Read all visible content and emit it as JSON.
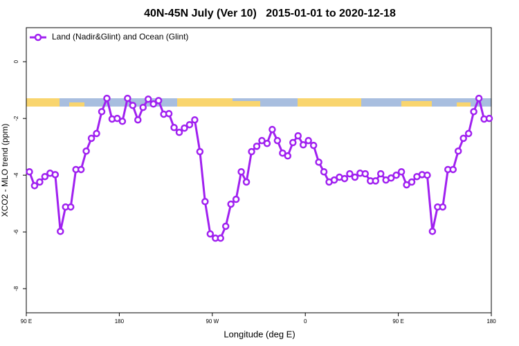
{
  "chart_data": {
    "type": "line",
    "title": "40N-45N July (Ver 10)   2015-01-01 to 2020-12-18",
    "xlabel": "Longitude (deg E)",
    "ylabel": "XCO2 - MLO trend (ppm)",
    "x": [
      93,
      98,
      103,
      108,
      113,
      118,
      123,
      128,
      133,
      138,
      143,
      148,
      153,
      158,
      163,
      168,
      173,
      178,
      183,
      188,
      193,
      198,
      203,
      208,
      213,
      218,
      223,
      228,
      233,
      238,
      243,
      248,
      253,
      258,
      263,
      268,
      273,
      278,
      283,
      288,
      293,
      298,
      303,
      308,
      313,
      318,
      323,
      328,
      333,
      338,
      343,
      348,
      353,
      358,
      363,
      368,
      373,
      378,
      383,
      388,
      393,
      398,
      403,
      408,
      413,
      418,
      423,
      428,
      433,
      438,
      443,
      448,
      453,
      458,
      463,
      468,
      473,
      478,
      483,
      488,
      493,
      498,
      503,
      508,
      513,
      518,
      523,
      528,
      533,
      538
    ],
    "series": [
      {
        "name": "Land (Nadir&Glint) and Ocean (Glint)",
        "color": "#a020f0",
        "values": [
          -3.88,
          -4.37,
          -4.24,
          -4.05,
          -3.93,
          -3.98,
          -5.98,
          -5.12,
          -5.12,
          -3.8,
          -3.8,
          -3.15,
          -2.7,
          -2.53,
          -1.76,
          -1.29,
          -2.02,
          -2.0,
          -2.1,
          -1.29,
          -1.54,
          -2.05,
          -1.61,
          -1.32,
          -1.49,
          -1.37,
          -1.85,
          -1.83,
          -2.32,
          -2.49,
          -2.34,
          -2.22,
          -2.05,
          -3.17,
          -4.93,
          -6.07,
          -6.22,
          -6.22,
          -5.8,
          -5.02,
          -4.85,
          -3.88,
          -4.24,
          -3.17,
          -2.98,
          -2.78,
          -2.88,
          -2.39,
          -2.78,
          -3.22,
          -3.32,
          -2.85,
          -2.61,
          -2.93,
          -2.78,
          -2.95,
          -3.54,
          -3.88,
          -4.24,
          -4.17,
          -4.07,
          -4.12,
          -3.95,
          -4.07,
          -3.93,
          -3.95,
          -4.2,
          -4.2,
          -3.95,
          -4.17,
          -4.1,
          -4.0,
          -3.88,
          -4.34,
          -4.24,
          -4.05,
          -3.98,
          -4.0,
          -5.98,
          -5.12,
          -5.12,
          -3.8,
          -3.8,
          -3.15,
          -2.7,
          -2.53,
          -1.76,
          -1.29,
          -2.02,
          -2.0
        ]
      }
    ],
    "xlim": [
      90,
      540
    ],
    "xticks": [
      {
        "value": 90,
        "label": "90 E"
      },
      180,
      {
        "value": 270,
        "label": "90 W"
      },
      {
        "value": 360,
        "label": "0"
      },
      {
        "value": 450,
        "label": "90 E"
      },
      {
        "value": 540,
        "label": "180"
      }
    ],
    "ylim": [
      -8.85,
      1.2
    ],
    "yticks": [
      0,
      -2,
      -4,
      -6,
      -8
    ],
    "legend": "top-left"
  }
}
